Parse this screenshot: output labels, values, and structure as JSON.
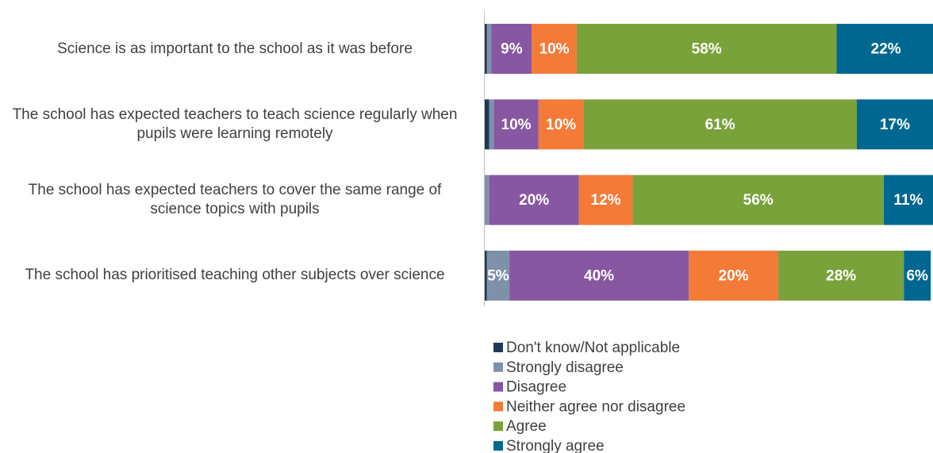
{
  "chart_data": {
    "type": "bar",
    "orientation": "horizontal",
    "stacked": true,
    "categories": [
      "Science is as important to the school as it was before",
      "The school has expected teachers to teach science regularly when pupils were learning remotely",
      "The school has expected teachers to cover the same range of science topics with pupils",
      "The school has prioritised teaching other subjects over science"
    ],
    "series": [
      {
        "name": "Don't know/Not applicable",
        "color": "#1f3a56",
        "values": [
          0.5,
          1,
          0,
          0.5
        ],
        "value_labels": [
          null,
          null,
          null,
          null
        ]
      },
      {
        "name": "Strongly disagree",
        "color": "#7f91a9",
        "values": [
          1,
          1,
          1,
          5
        ],
        "value_labels": [
          null,
          null,
          null,
          "5%"
        ]
      },
      {
        "name": "Disagree",
        "color": "#8757a1",
        "values": [
          9,
          10,
          20,
          40
        ],
        "value_labels": [
          "9%",
          "10%",
          "20%",
          "40%"
        ]
      },
      {
        "name": "Neither agree nor disagree",
        "color": "#f47a37",
        "values": [
          10,
          10,
          12,
          20
        ],
        "value_labels": [
          "10%",
          "10%",
          "12%",
          "20%"
        ]
      },
      {
        "name": "Agree",
        "color": "#7aa23a",
        "values": [
          58,
          61,
          56,
          28
        ],
        "value_labels": [
          "58%",
          "61%",
          "56%",
          "28%"
        ]
      },
      {
        "name": "Strongly agree",
        "color": "#006890",
        "values": [
          22,
          17,
          11,
          6
        ],
        "value_labels": [
          "22%",
          "17%",
          "11%",
          "6%"
        ]
      }
    ],
    "xlim": [
      0,
      100
    ],
    "legend": "bottom"
  }
}
